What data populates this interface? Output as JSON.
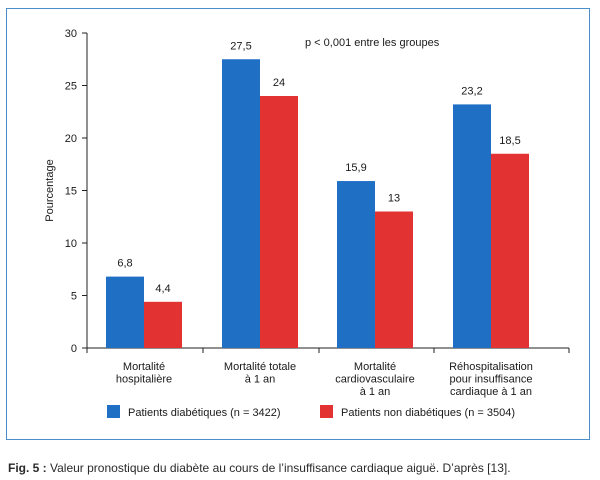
{
  "chart_data": {
    "type": "bar",
    "categories": [
      [
        "Mortalité",
        "hospitalière"
      ],
      [
        "Mortalité totale",
        "à 1 an"
      ],
      [
        "Mortalité",
        "cardiovasculaire",
        "à 1 an"
      ],
      [
        "Réhospitalisation",
        "pour insuffisance",
        "cardiaque à 1 an"
      ]
    ],
    "series": [
      {
        "name": "Patients diabétiques (n = 3422)",
        "color": "#1f6fc5",
        "values": [
          6.8,
          27.5,
          15.9,
          23.2
        ],
        "labels": [
          "6,8",
          "27,5",
          "15,9",
          "23,2"
        ]
      },
      {
        "name": "Patients non diabétiques (n = 3504)",
        "color": "#e33232",
        "values": [
          4.4,
          24,
          13,
          18.5
        ],
        "labels": [
          "4,4",
          "24",
          "13",
          "18,5"
        ]
      }
    ],
    "ylabel": "Pourcentage",
    "ylim": [
      0,
      30
    ],
    "yticks": [
      0,
      5,
      10,
      15,
      20,
      25,
      30
    ],
    "annotation": "p < 0,001 entre les groupes",
    "legend_position": "bottom",
    "grid": false
  },
  "caption": {
    "prefix": "Fig. 5 :",
    "text": " Valeur pronostique du diabète au cours de l’insuffisance cardiaque aiguë. D’après [13]."
  }
}
